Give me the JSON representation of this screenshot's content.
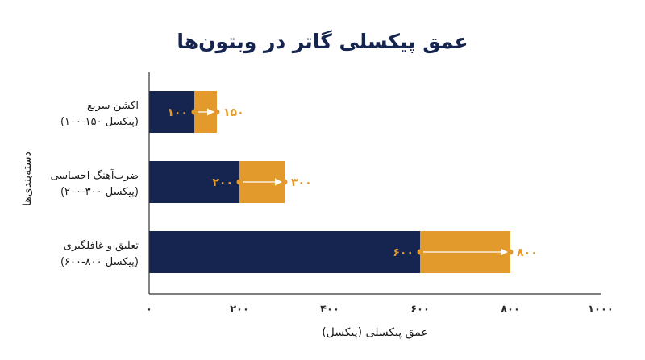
{
  "chart_data": {
    "type": "bar",
    "title": "عمق پیکسلی گاتر در وبتون‌ها",
    "xlabel": "عمق پیکسلی (پیکسل)",
    "ylabel": "دسته‌بندی‌ها",
    "xlim": [
      0,
      1000
    ],
    "xticks": [
      0,
      200,
      400,
      600,
      800,
      1000
    ],
    "xtick_labels": [
      "۰",
      "۲۰۰",
      "۴۰۰",
      "۶۰۰",
      "۸۰۰",
      "۱۰۰۰"
    ],
    "categories": [
      {
        "line1": "اکشن سریع",
        "line2": "(۱۰۰-۱۵۰ پیکسل)"
      },
      {
        "line1": "ضرب‌آهنگ احساسی",
        "line2": "(۲۰۰-۳۰۰ پیکسل)"
      },
      {
        "line1": "تعلیق و غافلگیری",
        "line2": "(۶۰۰-۸۰۰ پیکسل)"
      }
    ],
    "min_values": [
      100,
      200,
      600
    ],
    "max_values": [
      150,
      300,
      800
    ],
    "min_labels": [
      "۱۰۰",
      "۲۰۰",
      "۶۰۰"
    ],
    "max_labels": [
      "۱۵۰",
      "۳۰۰",
      "۸۰۰"
    ],
    "colors": {
      "min": "#16254f",
      "range": "#e39a2d",
      "arrow": "#ffffff",
      "text": "#16254f",
      "axis": "#333333"
    },
    "grid": false
  }
}
